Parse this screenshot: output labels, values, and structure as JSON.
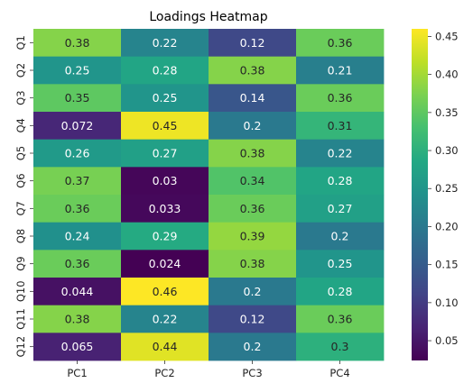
{
  "chart_data": {
    "type": "heatmap",
    "title": "Loadings Heatmap",
    "xlabel": "",
    "ylabel": "",
    "x_categories": [
      "PC1",
      "PC2",
      "PC3",
      "PC4"
    ],
    "y_categories": [
      "Q1",
      "Q2",
      "Q3",
      "Q4",
      "Q5",
      "Q6",
      "Q7",
      "Q8",
      "Q9",
      "Q10",
      "Q11",
      "Q12"
    ],
    "values": [
      [
        0.38,
        0.22,
        0.12,
        0.36
      ],
      [
        0.25,
        0.28,
        0.38,
        0.21
      ],
      [
        0.35,
        0.25,
        0.14,
        0.36
      ],
      [
        0.072,
        0.45,
        0.2,
        0.31
      ],
      [
        0.26,
        0.27,
        0.38,
        0.22
      ],
      [
        0.37,
        0.03,
        0.34,
        0.28
      ],
      [
        0.36,
        0.033,
        0.36,
        0.27
      ],
      [
        0.24,
        0.29,
        0.39,
        0.2
      ],
      [
        0.36,
        0.024,
        0.38,
        0.25
      ],
      [
        0.044,
        0.46,
        0.2,
        0.28
      ],
      [
        0.38,
        0.22,
        0.12,
        0.36
      ],
      [
        0.065,
        0.44,
        0.2,
        0.3
      ]
    ],
    "annotations": true,
    "colormap": "viridis",
    "colorbar": {
      "range": [
        0.024,
        0.46
      ],
      "ticks": [
        0.05,
        0.1,
        0.15,
        0.2,
        0.25,
        0.3,
        0.35,
        0.4,
        0.45
      ],
      "tick_labels": [
        "0.05",
        "0.10",
        "0.15",
        "0.20",
        "0.25",
        "0.30",
        "0.35",
        "0.40",
        "0.45"
      ]
    },
    "grid": false
  }
}
